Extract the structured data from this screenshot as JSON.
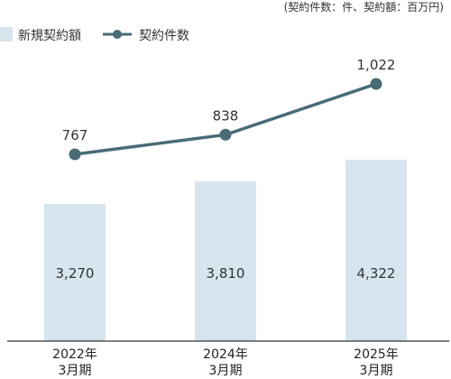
{
  "unit_note": "(契約件数：件、契約額：百万円)",
  "colors": {
    "bar": "#d6e5ee",
    "line": "#4a6b77",
    "axis": "#333333",
    "text": "#333333"
  },
  "chart_data": {
    "type": "bar+line",
    "categories": [
      {
        "line1": "2022年",
        "line2": "3月期"
      },
      {
        "line1": "2024年",
        "line2": "3月期"
      },
      {
        "line1": "2025年",
        "line2": "3月期"
      }
    ],
    "series": [
      {
        "name": "新規契約額",
        "type": "bar",
        "values": [
          3270,
          3810,
          4322
        ],
        "labels": [
          "3,270",
          "3,810",
          "4,322"
        ]
      },
      {
        "name": "契約件数",
        "type": "line",
        "values": [
          767,
          838,
          1022
        ],
        "labels": [
          "767",
          "838",
          "1,022"
        ]
      }
    ],
    "grid": false,
    "legend": "top-left"
  }
}
